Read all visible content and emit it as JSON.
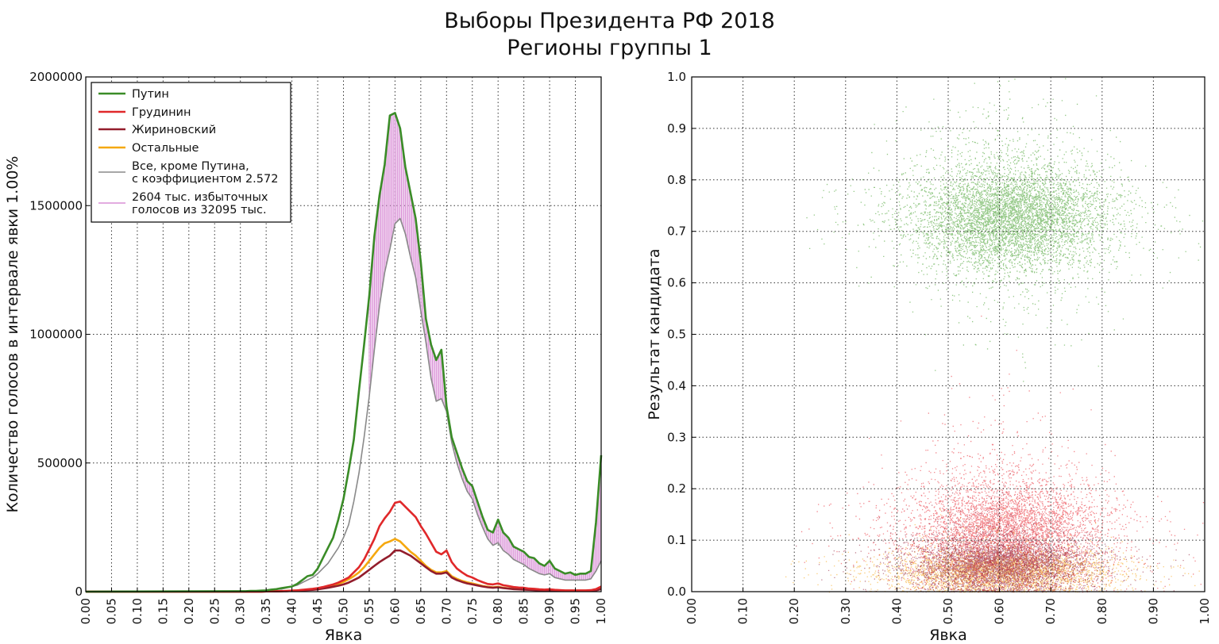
{
  "figure": {
    "title": "Выборы Президента РФ 2018",
    "subtitle": "Регионы группы 1"
  },
  "chart_data": [
    {
      "type": "line",
      "xlabel": "Явка",
      "ylabel": "Количество голосов в интервале явки 1.00%",
      "xlim": [
        0,
        1
      ],
      "ylim": [
        0,
        2000000
      ],
      "xticks": [
        "0.00",
        "0.05",
        "0.10",
        "0.15",
        "0.20",
        "0.25",
        "0.30",
        "0.35",
        "0.40",
        "0.45",
        "0.50",
        "0.55",
        "0.60",
        "0.65",
        "0.70",
        "0.75",
        "0.80",
        "0.85",
        "0.90",
        "0.95",
        "1.00"
      ],
      "yticks": [
        "0",
        "500000",
        "1000000",
        "1500000",
        "2000000"
      ],
      "grid": true,
      "legend_position": "top-left",
      "x": [
        0.3,
        0.31,
        0.32,
        0.33,
        0.34,
        0.35,
        0.36,
        0.37,
        0.38,
        0.39,
        0.4,
        0.41,
        0.42,
        0.43,
        0.44,
        0.45,
        0.46,
        0.47,
        0.48,
        0.49,
        0.5,
        0.51,
        0.52,
        0.53,
        0.54,
        0.55,
        0.56,
        0.57,
        0.58,
        0.59,
        0.6,
        0.61,
        0.62,
        0.63,
        0.64,
        0.65,
        0.66,
        0.67,
        0.68,
        0.69,
        0.7,
        0.71,
        0.72,
        0.73,
        0.74,
        0.75,
        0.76,
        0.77,
        0.78,
        0.79,
        0.8,
        0.81,
        0.82,
        0.83,
        0.84,
        0.85,
        0.86,
        0.87,
        0.88,
        0.89,
        0.9,
        0.91,
        0.92,
        0.93,
        0.94,
        0.95,
        0.96,
        0.97,
        0.98,
        0.99,
        1.0
      ],
      "series": [
        {
          "name": "Путин",
          "color": "#3a8c27",
          "values": [
            2000,
            2000,
            3000,
            3000,
            4000,
            5000,
            8000,
            10000,
            14000,
            17000,
            20000,
            30000,
            45000,
            60000,
            65000,
            90000,
            130000,
            170000,
            210000,
            280000,
            360000,
            470000,
            590000,
            780000,
            960000,
            1150000,
            1380000,
            1540000,
            1660000,
            1850000,
            1860000,
            1800000,
            1650000,
            1550000,
            1450000,
            1280000,
            1060000,
            960000,
            900000,
            940000,
            720000,
            600000,
            540000,
            480000,
            430000,
            410000,
            350000,
            290000,
            240000,
            230000,
            280000,
            230000,
            210000,
            175000,
            165000,
            155000,
            135000,
            130000,
            110000,
            100000,
            120000,
            90000,
            80000,
            70000,
            75000,
            65000,
            70000,
            70000,
            80000,
            270000,
            530000
          ]
        },
        {
          "name": "Грудинин",
          "color": "#e0282a",
          "values": [
            0,
            0,
            0,
            0,
            0,
            1000,
            1000,
            2000,
            2000,
            3000,
            4000,
            5000,
            7000,
            9000,
            11000,
            14000,
            18000,
            23000,
            28000,
            35000,
            45000,
            55000,
            75000,
            95000,
            125000,
            165000,
            205000,
            255000,
            285000,
            310000,
            345000,
            350000,
            330000,
            310000,
            290000,
            255000,
            225000,
            190000,
            155000,
            145000,
            160000,
            115000,
            90000,
            75000,
            62000,
            55000,
            45000,
            37000,
            30000,
            28000,
            32000,
            25000,
            22000,
            18000,
            16000,
            15000,
            12000,
            11000,
            9000,
            8000,
            9000,
            7000,
            6000,
            5000,
            5000,
            5000,
            5000,
            5000,
            6000,
            10000,
            20000
          ]
        },
        {
          "name": "Жириновский",
          "color": "#931d2c",
          "values": [
            0,
            0,
            0,
            0,
            0,
            1000,
            1000,
            1000,
            2000,
            2000,
            3000,
            4000,
            5000,
            6000,
            7000,
            9000,
            12000,
            15000,
            19000,
            23000,
            28000,
            35000,
            45000,
            55000,
            70000,
            85000,
            100000,
            115000,
            128000,
            140000,
            160000,
            160000,
            150000,
            140000,
            125000,
            110000,
            95000,
            80000,
            70000,
            70000,
            75000,
            55000,
            45000,
            38000,
            32000,
            28000,
            24000,
            20000,
            17000,
            15000,
            17000,
            14000,
            12000,
            10000,
            9000,
            8000,
            7000,
            6000,
            5000,
            4500,
            5000,
            4000,
            3500,
            3000,
            3000,
            3000,
            3000,
            3000,
            3000,
            5000,
            10000
          ]
        },
        {
          "name": "Остальные",
          "color": "#f5a80f",
          "values": [
            0,
            0,
            0,
            0,
            0,
            1000,
            1000,
            2000,
            2000,
            3000,
            4000,
            5000,
            6000,
            8000,
            9000,
            12000,
            15000,
            19000,
            24000,
            30000,
            38000,
            48000,
            60000,
            75000,
            95000,
            120000,
            145000,
            170000,
            188000,
            195000,
            205000,
            195000,
            175000,
            155000,
            140000,
            120000,
            100000,
            85000,
            75000,
            75000,
            80000,
            60000,
            50000,
            42000,
            36000,
            32000,
            27000,
            22000,
            19000,
            17000,
            19000,
            15000,
            13000,
            11000,
            10000,
            9000,
            8000,
            7000,
            6000,
            5500,
            6000,
            5000,
            4500,
            4000,
            4000,
            4000,
            4000,
            4000,
            4000,
            8000,
            15000
          ]
        },
        {
          "name": "Все, кроме Путина,\nс коэффициентом 2.572",
          "color": "#8a8a8a",
          "values": [
            0,
            0,
            0,
            0,
            0,
            5000,
            5000,
            10000,
            10000,
            15000,
            20000,
            25000,
            35000,
            45000,
            55000,
            70000,
            90000,
            110000,
            140000,
            170000,
            210000,
            260000,
            350000,
            460000,
            600000,
            760000,
            940000,
            1110000,
            1240000,
            1330000,
            1430000,
            1450000,
            1390000,
            1300000,
            1220000,
            1090000,
            970000,
            830000,
            740000,
            750000,
            700000,
            580000,
            500000,
            440000,
            390000,
            360000,
            300000,
            250000,
            205000,
            180000,
            190000,
            160000,
            145000,
            125000,
            115000,
            105000,
            90000,
            80000,
            70000,
            65000,
            70000,
            55000,
            50000,
            45000,
            45000,
            45000,
            45000,
            45000,
            50000,
            80000,
            120000
          ]
        }
      ],
      "legend": [
        {
          "label": "Путин",
          "color": "#3a8c27"
        },
        {
          "label": "Грудинин",
          "color": "#e0282a"
        },
        {
          "label": "Жириновский",
          "color": "#931d2c"
        },
        {
          "label": "Остальные",
          "color": "#f5a80f"
        },
        {
          "label_lines": [
            "Все, кроме Путина,",
            "с коэффициентом 2.572"
          ],
          "color": "#8a8a8a"
        },
        {
          "label_lines": [
            "2604 тыс. избыточных",
            "голосов из 32095 тыс."
          ],
          "color": "#d98fd6"
        }
      ],
      "fill_between": {
        "name": "2604 тыс. избыточных голосов из 32095 тыс.",
        "color": "#d98fd6",
        "between": [
          "Путин",
          "Все, кроме Путина,\nс коэффициентом 2.572"
        ]
      }
    },
    {
      "type": "scatter",
      "xlabel": "Явка",
      "ylabel": "Результат кандидата",
      "xlim": [
        0,
        1
      ],
      "ylim": [
        0,
        1
      ],
      "xticks": [
        "0.00",
        "0.10",
        "0.20",
        "0.30",
        "0.40",
        "0.50",
        "0.60",
        "0.70",
        "0.80",
        "0.90",
        "1.00"
      ],
      "yticks": [
        "0.0",
        "0.1",
        "0.2",
        "0.3",
        "0.4",
        "0.5",
        "0.6",
        "0.7",
        "0.8",
        "0.9",
        "1.0"
      ],
      "grid": true,
      "clusters": [
        {
          "name": "Путин",
          "color": "#3a9a22",
          "center": [
            0.62,
            0.73
          ],
          "spread": [
            0.09,
            0.05
          ]
        },
        {
          "name": "Грудинин",
          "color": "#e8202b",
          "center": [
            0.61,
            0.12
          ],
          "spread": [
            0.09,
            0.05
          ]
        },
        {
          "name": "Жириновский",
          "color": "#8f1d3a",
          "center": [
            0.6,
            0.055
          ],
          "spread": [
            0.08,
            0.025
          ]
        },
        {
          "name": "Остальные",
          "color": "#f4a30c",
          "center": [
            0.6,
            0.04
          ],
          "spread": [
            0.1,
            0.02
          ]
        }
      ]
    }
  ]
}
